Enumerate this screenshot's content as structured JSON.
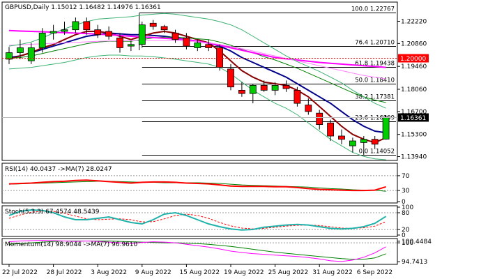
{
  "chart_data": {
    "type": "candlestick",
    "symbol_header": "GBPUSD,Daily  1.15012 1.16482 1.14976 1.16361",
    "current_price": "1.16361",
    "current_value": 1.16361,
    "marked_level": "1.20000",
    "marked_value": 1.2,
    "price_axis": {
      "range": [
        1.1375,
        1.2335
      ],
      "ticks": [
        {
          "label": "1.22220",
          "value": 1.2222
        },
        {
          "label": "1.20860",
          "value": 1.2086
        },
        {
          "label": "1.19460",
          "value": 1.1946
        },
        {
          "label": "1.18060",
          "value": 1.1806
        },
        {
          "label": "1.16700",
          "value": 1.167
        },
        {
          "label": "1.15300",
          "value": 1.153
        },
        {
          "label": "1.13940",
          "value": 1.1394
        }
      ]
    },
    "x_axis": {
      "labels": [
        {
          "label": "22 Jul 2022",
          "bar": 0
        },
        {
          "label": "28 Jul 2022",
          "bar": 4
        },
        {
          "label": "3 Aug 2022",
          "bar": 8
        },
        {
          "label": "9 Aug 2022",
          "bar": 12
        },
        {
          "label": "15 Aug 2022",
          "bar": 16
        },
        {
          "label": "19 Aug 2022",
          "bar": 20
        },
        {
          "label": "25 Aug 2022",
          "bar": 24
        },
        {
          "label": "31 Aug 2022",
          "bar": 28
        },
        {
          "label": "6 Sep 2022",
          "bar": 32
        }
      ]
    },
    "fibonacci": [
      {
        "label": "100.0 1.22767",
        "value": 1.22767
      },
      {
        "label": "76.4 1.20710",
        "value": 1.2071
      },
      {
        "label": "61.8 1.19438",
        "value": 1.19438
      },
      {
        "label": "50.0 1.18410",
        "value": 1.1841
      },
      {
        "label": "38.2 1.17381",
        "value": 1.17381
      },
      {
        "label": "23.6 1.16109",
        "value": 1.16109
      },
      {
        "label": "0.0 1.14052",
        "value": 1.14052
      }
    ],
    "candles": [
      {
        "o": 1.199,
        "h": 1.2065,
        "l": 1.196,
        "c": 1.203
      },
      {
        "o": 1.203,
        "h": 1.211,
        "l": 1.199,
        "c": 1.206
      },
      {
        "o": 1.198,
        "h": 1.209,
        "l": 1.196,
        "c": 1.206
      },
      {
        "o": 1.206,
        "h": 1.218,
        "l": 1.203,
        "c": 1.215
      },
      {
        "o": 1.215,
        "h": 1.22,
        "l": 1.211,
        "c": 1.216
      },
      {
        "o": 1.216,
        "h": 1.222,
        "l": 1.214,
        "c": 1.217
      },
      {
        "o": 1.217,
        "h": 1.2245,
        "l": 1.215,
        "c": 1.222
      },
      {
        "o": 1.222,
        "h": 1.2245,
        "l": 1.214,
        "c": 1.217
      },
      {
        "o": 1.217,
        "h": 1.22,
        "l": 1.212,
        "c": 1.214
      },
      {
        "o": 1.216,
        "h": 1.219,
        "l": 1.211,
        "c": 1.213
      },
      {
        "o": 1.212,
        "h": 1.215,
        "l": 1.203,
        "c": 1.206
      },
      {
        "o": 1.207,
        "h": 1.21,
        "l": 1.204,
        "c": 1.208
      },
      {
        "o": 1.208,
        "h": 1.222,
        "l": 1.206,
        "c": 1.22
      },
      {
        "o": 1.221,
        "h": 1.223,
        "l": 1.217,
        "c": 1.219
      },
      {
        "o": 1.219,
        "h": 1.22,
        "l": 1.215,
        "c": 1.217
      },
      {
        "o": 1.215,
        "h": 1.217,
        "l": 1.209,
        "c": 1.211
      },
      {
        "o": 1.212,
        "h": 1.215,
        "l": 1.205,
        "c": 1.207
      },
      {
        "o": 1.206,
        "h": 1.211,
        "l": 1.204,
        "c": 1.209
      },
      {
        "o": 1.208,
        "h": 1.211,
        "l": 1.204,
        "c": 1.206
      },
      {
        "o": 1.206,
        "h": 1.208,
        "l": 1.192,
        "c": 1.194
      },
      {
        "o": 1.193,
        "h": 1.196,
        "l": 1.18,
        "c": 1.182
      },
      {
        "o": 1.18,
        "h": 1.185,
        "l": 1.176,
        "c": 1.178
      },
      {
        "o": 1.178,
        "h": 1.184,
        "l": 1.172,
        "c": 1.183
      },
      {
        "o": 1.183,
        "h": 1.186,
        "l": 1.179,
        "c": 1.18
      },
      {
        "o": 1.18,
        "h": 1.185,
        "l": 1.177,
        "c": 1.183
      },
      {
        "o": 1.183,
        "h": 1.186,
        "l": 1.179,
        "c": 1.181
      },
      {
        "o": 1.18,
        "h": 1.182,
        "l": 1.17,
        "c": 1.172
      },
      {
        "o": 1.171,
        "h": 1.175,
        "l": 1.165,
        "c": 1.167
      },
      {
        "o": 1.166,
        "h": 1.168,
        "l": 1.156,
        "c": 1.159
      },
      {
        "o": 1.16,
        "h": 1.162,
        "l": 1.149,
        "c": 1.152
      },
      {
        "o": 1.152,
        "h": 1.156,
        "l": 1.147,
        "c": 1.15
      },
      {
        "o": 1.146,
        "h": 1.151,
        "l": 1.142,
        "c": 1.149
      },
      {
        "o": 1.148,
        "h": 1.152,
        "l": 1.1405,
        "c": 1.15
      },
      {
        "o": 1.15,
        "h": 1.152,
        "l": 1.144,
        "c": 1.147
      },
      {
        "o": 1.1501,
        "h": 1.1648,
        "l": 1.1498,
        "c": 1.1636
      }
    ],
    "overlays": [
      {
        "color": "#00008b",
        "values": [
          1.2,
          1.201,
          1.203,
          1.205,
          1.207,
          1.209,
          1.211,
          1.213,
          1.214,
          1.215,
          1.2145,
          1.214,
          1.214,
          1.2135,
          1.213,
          1.212,
          1.211,
          1.21,
          1.209,
          1.207,
          1.204,
          1.2,
          1.197,
          1.194,
          1.191,
          1.188,
          1.184,
          1.18,
          1.176,
          1.172,
          1.167,
          1.162,
          1.158,
          1.155,
          1.154
        ]
      },
      {
        "color": "#8b0000",
        "values": [
          1.199,
          1.201,
          1.203,
          1.206,
          1.208,
          1.211,
          1.214,
          1.216,
          1.216,
          1.215,
          1.213,
          1.211,
          1.213,
          1.215,
          1.216,
          1.215,
          1.213,
          1.211,
          1.209,
          1.204,
          1.198,
          1.192,
          1.188,
          1.185,
          1.184,
          1.183,
          1.18,
          1.176,
          1.17,
          1.164,
          1.158,
          1.153,
          1.15,
          1.148,
          1.151
        ]
      },
      {
        "color": "#008000",
        "values": [
          1.1995,
          1.2,
          1.201,
          1.2025,
          1.204,
          1.2055,
          1.207,
          1.2085,
          1.2095,
          1.21,
          1.21,
          1.21,
          1.211,
          1.212,
          1.2125,
          1.2125,
          1.212,
          1.2115,
          1.211,
          1.2095,
          1.2075,
          1.205,
          1.203,
          1.2005,
          1.1985,
          1.196,
          1.1935,
          1.1905,
          1.1875,
          1.1845,
          1.1815,
          1.1785,
          1.176,
          1.174,
          1.1725
        ]
      },
      {
        "color": "#ff00ff",
        "values": [
          1.2165,
          1.2162,
          1.216,
          1.2158,
          1.2155,
          1.2152,
          1.215,
          1.2147,
          1.2143,
          1.214,
          1.2135,
          1.213,
          1.2126,
          1.2122,
          1.2118,
          1.2114,
          1.211,
          1.21,
          1.2088,
          1.2075,
          1.206,
          1.2045,
          1.203,
          1.2015,
          1.2,
          1.1992,
          1.1985,
          1.1978,
          1.197,
          1.1965,
          1.196,
          1.1955,
          1.195,
          1.1946,
          1.194
        ]
      },
      {
        "color": "#ff80ff",
        "values": [
          1.2075,
          1.2078,
          1.2081,
          1.2084,
          1.2087,
          1.209,
          1.2093,
          1.2096,
          1.2099,
          1.2101,
          1.2102,
          1.2103,
          1.2104,
          1.2104,
          1.2104,
          1.2103,
          1.2101,
          1.2097,
          1.209,
          1.208,
          1.2068,
          1.2055,
          1.204,
          1.2025,
          1.201,
          1.1995,
          1.198,
          1.1965,
          1.195,
          1.1935,
          1.192,
          1.1905,
          1.189,
          1.188,
          1.187
        ]
      },
      {
        "color": "#3cb371",
        "values": [
          1.207,
          1.208,
          1.2095,
          1.212,
          1.215,
          1.2175,
          1.22,
          1.222,
          1.2235,
          1.224,
          1.2245,
          1.225,
          1.226,
          1.2265,
          1.227,
          1.2265,
          1.2255,
          1.2245,
          1.2235,
          1.222,
          1.22,
          1.217,
          1.213,
          1.209,
          1.205,
          1.201,
          1.1975,
          1.1945,
          1.1915,
          1.188,
          1.1845,
          1.18,
          1.176,
          1.172,
          1.169
        ]
      },
      {
        "color": "#3cb371",
        "values": [
          1.193,
          1.1935,
          1.194,
          1.195,
          1.196,
          1.197,
          1.1985,
          1.2,
          1.201,
          1.2015,
          1.2015,
          1.201,
          1.201,
          1.2005,
          1.1998,
          1.199,
          1.198,
          1.197,
          1.196,
          1.194,
          1.19,
          1.185,
          1.18,
          1.176,
          1.172,
          1.169,
          1.165,
          1.16,
          1.155,
          1.15,
          1.146,
          1.142,
          1.1395,
          1.138,
          1.1375
        ]
      }
    ],
    "rsi": {
      "label": "RSI(14) 40.0437  ->MA(7) 28.0247",
      "ticks": [
        {
          "label": "70",
          "value": 70
        },
        {
          "label": "30",
          "value": 30
        },
        {
          "label": "0",
          "value": 0
        }
      ],
      "range": [
        0,
        100
      ],
      "rsi_values": [
        48,
        49,
        50,
        52,
        54,
        55,
        57,
        58,
        56,
        54,
        52,
        50,
        52,
        53,
        53,
        52,
        50,
        49,
        48,
        45,
        42,
        41,
        41,
        41,
        40,
        40,
        38,
        35,
        33,
        32,
        31,
        30,
        30,
        31,
        40
      ],
      "ma_values": [
        47,
        48,
        49,
        50,
        51,
        52,
        53,
        54,
        55,
        55,
        54,
        53,
        52,
        52,
        51,
        51,
        51,
        51,
        50,
        49,
        47,
        45,
        44,
        43,
        42,
        41,
        40,
        39,
        37,
        35,
        34,
        32,
        31,
        31,
        28
      ]
    },
    "stoch": {
      "label": "Stoch(5,3,3) 67.4574 48.5439",
      "ticks": [
        {
          "label": "100",
          "value": 100
        },
        {
          "label": "80",
          "value": 80
        },
        {
          "label": "20",
          "value": 20
        },
        {
          "label": "0",
          "value": 0
        }
      ],
      "range": [
        0,
        100
      ],
      "k_values": [
        70,
        85,
        90,
        88,
        80,
        65,
        55,
        55,
        60,
        65,
        55,
        45,
        40,
        55,
        75,
        80,
        70,
        55,
        40,
        30,
        22,
        18,
        20,
        28,
        32,
        36,
        38,
        36,
        30,
        24,
        22,
        24,
        30,
        42,
        67
      ],
      "d_values": [
        60,
        72,
        82,
        86,
        85,
        78,
        68,
        58,
        55,
        57,
        58,
        55,
        47,
        48,
        58,
        70,
        75,
        70,
        60,
        45,
        33,
        25,
        22,
        24,
        28,
        32,
        35,
        36,
        34,
        30,
        25,
        24,
        26,
        32,
        48
      ]
    },
    "momentum": {
      "label": "Momentum(14) 98.9044  ->MA(7) 96.9610",
      "ticks": [
        {
          "label": "100.4484",
          "value": 100.4484
        },
        {
          "label": "100",
          "value": 100
        },
        {
          "label": "94.7413",
          "value": 94.7413
        }
      ],
      "range": [
        94.4,
        100.8
      ],
      "mom_values": [
        100.3,
        100.5,
        100.6,
        100.7,
        100.6,
        100.5,
        100.4,
        100.5,
        100.4,
        100.2,
        100.0,
        99.8,
        100.1,
        100.3,
        100.2,
        100.0,
        99.6,
        99.2,
        98.8,
        98.3,
        97.7,
        97.3,
        97.0,
        96.8,
        96.6,
        96.4,
        96.2,
        95.9,
        95.5,
        95.0,
        94.8,
        95.2,
        96.0,
        97.2,
        98.9
      ],
      "ma_values": [
        99.6,
        99.8,
        100.0,
        100.2,
        100.4,
        100.5,
        100.5,
        100.5,
        100.5,
        100.5,
        100.4,
        100.3,
        100.2,
        100.1,
        100.0,
        100.0,
        99.9,
        99.8,
        99.6,
        99.3,
        99.0,
        98.6,
        98.2,
        97.8,
        97.4,
        97.1,
        96.8,
        96.5,
        96.2,
        95.9,
        95.6,
        95.4,
        95.4,
        95.8,
        96.96
      ]
    }
  }
}
